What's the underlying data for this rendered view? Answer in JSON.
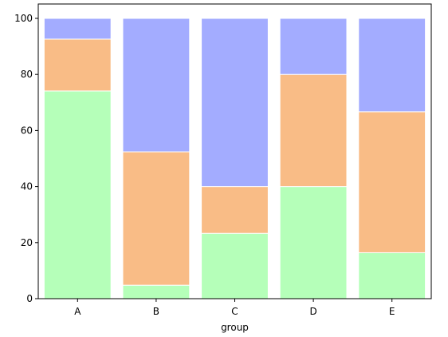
{
  "chart_data": {
    "type": "bar",
    "stacked": true,
    "categories": [
      "A",
      "B",
      "C",
      "D",
      "E"
    ],
    "series": [
      {
        "color": "#b5ffb9",
        "values": [
          74.1,
          4.8,
          23.3,
          40.0,
          16.4
        ]
      },
      {
        "color": "#f9bc86",
        "values": [
          18.5,
          47.6,
          16.7,
          40.0,
          50.3
        ]
      },
      {
        "color": "#a3acff",
        "values": [
          7.4,
          47.6,
          60.0,
          20.0,
          33.3
        ]
      }
    ],
    "title": "",
    "xlabel": "group",
    "ylabel": "",
    "ylim": [
      0,
      100
    ],
    "yticks": [
      0,
      20,
      40,
      60,
      80,
      100
    ],
    "grid": false,
    "bar_edge_color": "#ffffff"
  }
}
